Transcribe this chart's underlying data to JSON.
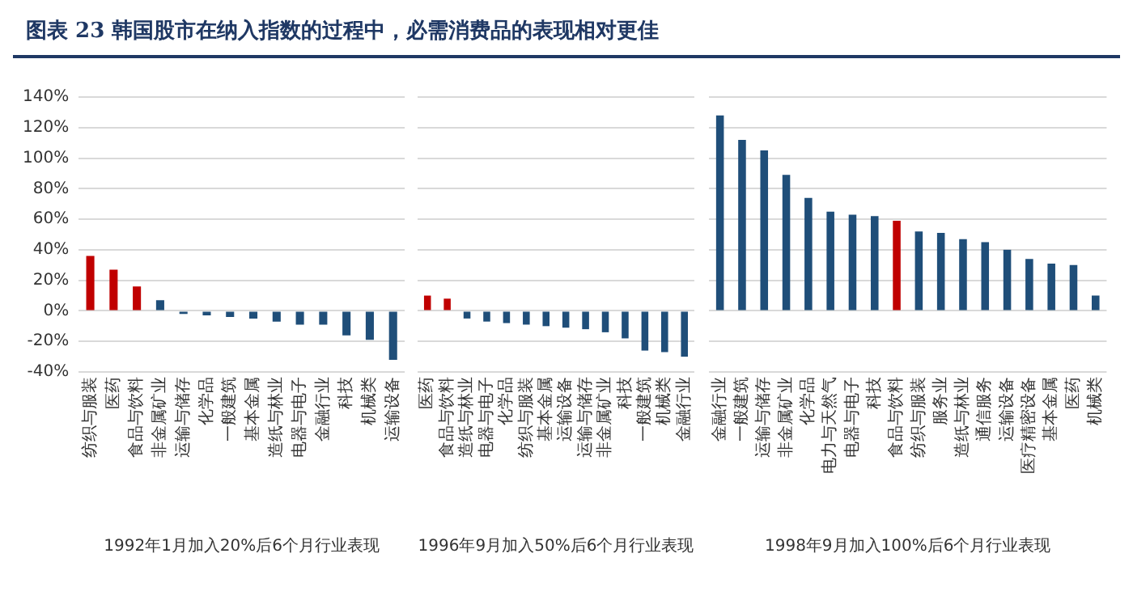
{
  "chart_data": [
    {
      "type": "bar",
      "title": "图表 23  韩国股市在纳入指数的过程中，必需消费品的表现相对更佳",
      "xlabel": "1992年1月加入20%后6个月行业表现",
      "categories": [
        "纺织与服装",
        "医药",
        "食品与饮料",
        "非金属矿业",
        "运输与储存",
        "化学品",
        "一般建筑",
        "基本金属",
        "造纸与林业",
        "电器与电子",
        "金融行业",
        "科技",
        "机械类",
        "运输设备"
      ],
      "values": [
        36,
        27,
        16,
        7,
        -2,
        -3,
        -4,
        -5,
        -7,
        -9,
        -9,
        -16,
        -19,
        -32
      ],
      "colors": [
        "#c00000",
        "#c00000",
        "#c00000",
        "#1f4e79",
        "#1f4e79",
        "#1f4e79",
        "#1f4e79",
        "#1f4e79",
        "#1f4e79",
        "#1f4e79",
        "#1f4e79",
        "#1f4e79",
        "#1f4e79",
        "#1f4e79"
      ],
      "ylim": [
        -40,
        140
      ],
      "yticks": [
        {
          "value": -40,
          "label": "-40%"
        },
        {
          "value": -20,
          "label": "-20%"
        },
        {
          "value": 0,
          "label": "0%"
        },
        {
          "value": 20,
          "label": "20%"
        },
        {
          "value": 40,
          "label": "40%"
        },
        {
          "value": 60,
          "label": "60%"
        },
        {
          "value": 80,
          "label": "80%"
        },
        {
          "value": 100,
          "label": "100%"
        },
        {
          "value": 120,
          "label": "120%"
        },
        {
          "value": 140,
          "label": "140%"
        }
      ],
      "grid": "y"
    },
    {
      "type": "bar",
      "xlabel": "1996年9月加入50%后6个月行业表现",
      "categories": [
        "医药",
        "食品与饮料",
        "造纸与林业",
        "电器与电子",
        "化学品",
        "纺织与服装",
        "基本金属",
        "运输设备",
        "运输与储存",
        "非金属矿业",
        "科技",
        "一般建筑",
        "机械类",
        "金融行业"
      ],
      "values": [
        10,
        8,
        -5,
        -7,
        -8,
        -9,
        -10,
        -11,
        -12,
        -14,
        -18,
        -26,
        -27,
        -30
      ],
      "colors": [
        "#c00000",
        "#c00000",
        "#1f4e79",
        "#1f4e79",
        "#1f4e79",
        "#1f4e79",
        "#1f4e79",
        "#1f4e79",
        "#1f4e79",
        "#1f4e79",
        "#1f4e79",
        "#1f4e79",
        "#1f4e79",
        "#1f4e79"
      ],
      "ylim": [
        -40,
        140
      ],
      "yticks": [
        -40,
        -20,
        0,
        20,
        40,
        60,
        80,
        100,
        120,
        140
      ],
      "grid": "y",
      "tick_labels": "x"
    },
    {
      "type": "bar",
      "xlabel": "1998年9月加入100%后6个月行业表现",
      "categories": [
        "金融行业",
        "一般建筑",
        "运输与储存",
        "非金属矿业",
        "化学品",
        "电力与天然气",
        "电器与电子",
        "科技",
        "食品与饮料",
        "纺织与服装",
        "服务业",
        "造纸与林业",
        "通信服务",
        "运输设备",
        "医疗精密设备",
        "基本金属",
        "医药",
        "机械类"
      ],
      "values": [
        128,
        112,
        105,
        89,
        74,
        65,
        63,
        62,
        59,
        52,
        51,
        47,
        45,
        40,
        34,
        31,
        30,
        10
      ],
      "colors": [
        "#1f4e79",
        "#1f4e79",
        "#1f4e79",
        "#1f4e79",
        "#1f4e79",
        "#1f4e79",
        "#1f4e79",
        "#1f4e79",
        "#c00000",
        "#1f4e79",
        "#1f4e79",
        "#1f4e79",
        "#1f4e79",
        "#1f4e79",
        "#1f4e79",
        "#1f4e79",
        "#1f4e79",
        "#1f4e79"
      ],
      "ylim": [
        -40,
        140
      ],
      "yticks": [
        -40,
        -20,
        0,
        20,
        40,
        60,
        80,
        100,
        120,
        140
      ],
      "grid": "y",
      "tick_labels": "x"
    }
  ]
}
